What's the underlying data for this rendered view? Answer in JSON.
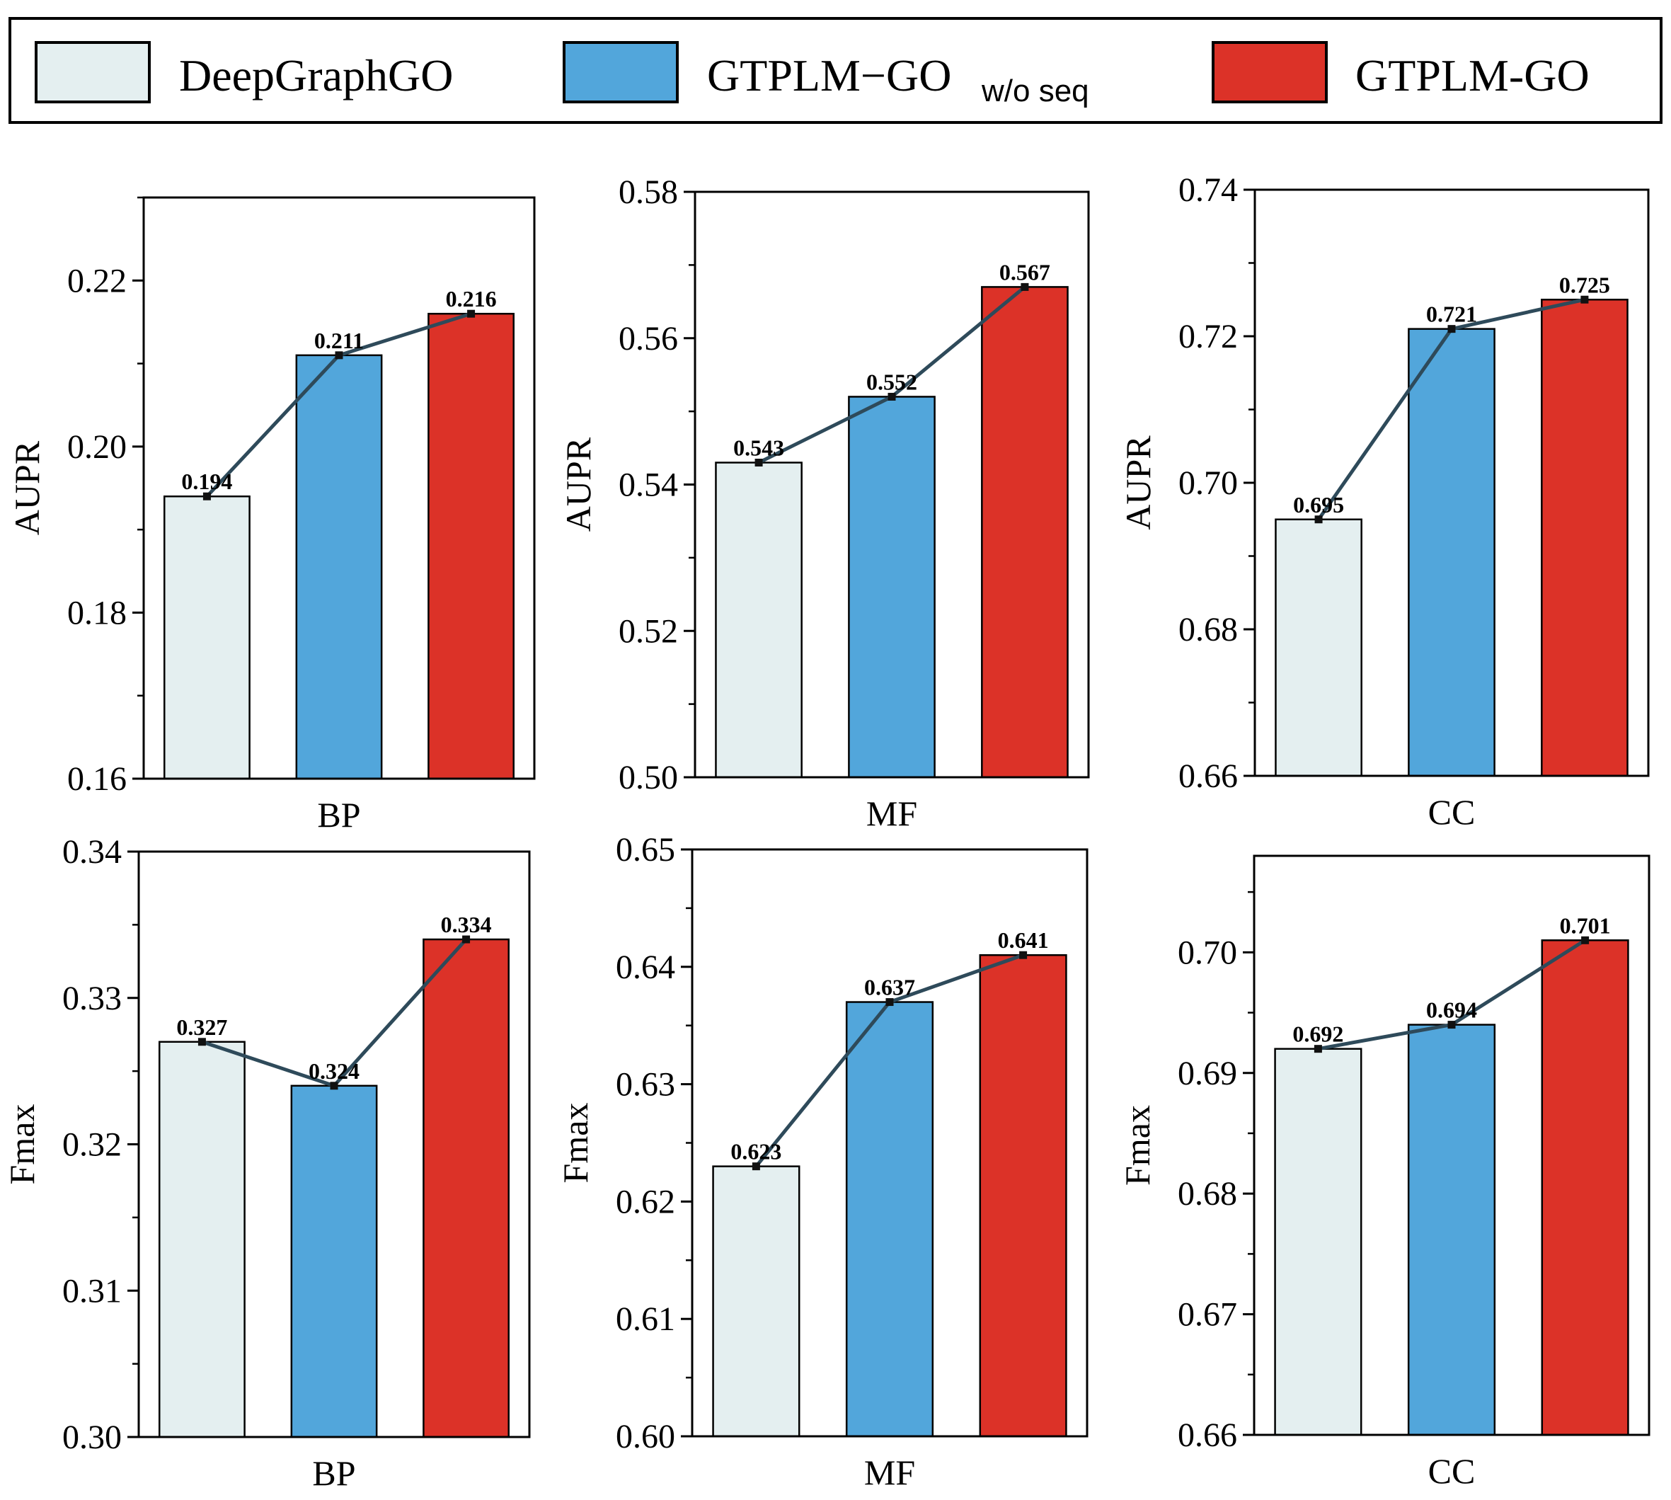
{
  "legend": {
    "items": [
      {
        "label": "DeepGraphGO",
        "sub": "",
        "color": "#e4eff0"
      },
      {
        "label": "GTPLM−GO",
        "sub": "w/o seq",
        "color": "#52a6db"
      },
      {
        "label": "GTPLM-GO",
        "sub": "",
        "color": "#dc3228"
      }
    ]
  },
  "colors": {
    "line": "#2e4a5a",
    "marker": "#111111",
    "border": "#000000"
  },
  "chart_data": [
    {
      "type": "bar",
      "categories": [
        "DeepGraphGO",
        "GTPLM−GO w/o seq",
        "GTPLM-GO"
      ],
      "values": [
        0.194,
        0.211,
        0.216
      ],
      "value_labels": [
        "0.194",
        "0.211",
        "0.216"
      ],
      "xlabel": "BP",
      "ylabel": "AUPR",
      "ylim": [
        0.16,
        0.23
      ],
      "yticks": [
        0.16,
        0.18,
        0.2,
        0.22
      ],
      "ytick_labels": [
        "0.16",
        "0.18",
        "0.20",
        "0.22"
      ]
    },
    {
      "type": "bar",
      "categories": [
        "DeepGraphGO",
        "GTPLM−GO w/o seq",
        "GTPLM-GO"
      ],
      "values": [
        0.543,
        0.552,
        0.567
      ],
      "value_labels": [
        "0.543",
        "0.552",
        "0.567"
      ],
      "xlabel": "MF",
      "ylabel": "AUPR",
      "ylim": [
        0.5,
        0.58
      ],
      "yticks": [
        0.5,
        0.52,
        0.54,
        0.56,
        0.58
      ],
      "ytick_labels": [
        "0.50",
        "0.52",
        "0.54",
        "0.56",
        "0.58"
      ]
    },
    {
      "type": "bar",
      "categories": [
        "DeepGraphGO",
        "GTPLM−GO w/o seq",
        "GTPLM-GO"
      ],
      "values": [
        0.695,
        0.721,
        0.725
      ],
      "value_labels": [
        "0.695",
        "0.721",
        "0.725"
      ],
      "xlabel": "CC",
      "ylabel": "AUPR",
      "ylim": [
        0.66,
        0.74
      ],
      "yticks": [
        0.66,
        0.68,
        0.7,
        0.72,
        0.74
      ],
      "ytick_labels": [
        "0.66",
        "0.68",
        "0.70",
        "0.72",
        "0.74"
      ]
    },
    {
      "type": "bar",
      "categories": [
        "DeepGraphGO",
        "GTPLM−GO w/o seq",
        "GTPLM-GO"
      ],
      "values": [
        0.327,
        0.324,
        0.334
      ],
      "value_labels": [
        "0.327",
        "0.324",
        "0.334"
      ],
      "xlabel": "BP",
      "ylabel": "Fmax",
      "ylim": [
        0.3,
        0.34
      ],
      "yticks": [
        0.3,
        0.31,
        0.32,
        0.33,
        0.34
      ],
      "ytick_labels": [
        "0.30",
        "0.31",
        "0.32",
        "0.33",
        "0.34"
      ]
    },
    {
      "type": "bar",
      "categories": [
        "DeepGraphGO",
        "GTPLM−GO w/o seq",
        "GTPLM-GO"
      ],
      "values": [
        0.623,
        0.637,
        0.641
      ],
      "value_labels": [
        "0.623",
        "0.637",
        "0.641"
      ],
      "xlabel": "MF",
      "ylabel": "Fmax",
      "ylim": [
        0.6,
        0.65
      ],
      "yticks": [
        0.6,
        0.61,
        0.62,
        0.63,
        0.64,
        0.65
      ],
      "ytick_labels": [
        "0.60",
        "0.61",
        "0.62",
        "0.63",
        "0.64",
        "0.65"
      ]
    },
    {
      "type": "bar",
      "categories": [
        "DeepGraphGO",
        "GTPLM−GO w/o seq",
        "GTPLM-GO"
      ],
      "values": [
        0.692,
        0.694,
        0.701
      ],
      "value_labels": [
        "0.692",
        "0.694",
        "0.701"
      ],
      "xlabel": "CC",
      "ylabel": "Fmax",
      "ylim": [
        0.66,
        0.708
      ],
      "yticks": [
        0.66,
        0.67,
        0.68,
        0.69,
        0.7
      ],
      "ytick_labels": [
        "0.66",
        "0.67",
        "0.68",
        "0.69",
        "0.70"
      ]
    }
  ]
}
